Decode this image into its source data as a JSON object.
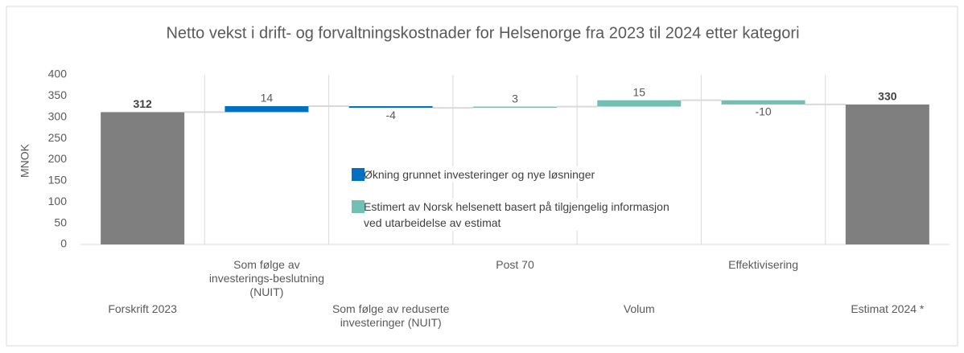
{
  "chart_data": {
    "type": "waterfall",
    "title": "Netto vekst i drift- og forvaltningskostnader for Helsenorge fra 2023 til 2024 etter kategori",
    "ylabel": "MNOK",
    "categories": [
      "Forskrift 2023",
      "Som følge av investerings-beslutning (NUIT)",
      "Som følge av reduserte investeringer (NUIT)",
      "Post 70",
      "Volum",
      "Effektivisering",
      "Estimat 2024 *"
    ],
    "values": [
      312,
      14,
      -4,
      3,
      15,
      -10,
      330
    ],
    "measure": [
      "total",
      "relative",
      "relative",
      "relative",
      "relative",
      "relative",
      "total"
    ],
    "colors": [
      "#7f7f7f",
      "#0070c0",
      "#0070c0",
      "#70c1b3",
      "#70c1b3",
      "#70c1b3",
      "#7f7f7f"
    ],
    "ylim": [
      0,
      400
    ],
    "yticks": [
      0,
      50,
      100,
      150,
      200,
      250,
      300,
      350,
      400
    ],
    "grid": false,
    "legend": [
      {
        "name": "Økning grunnet investeringer og nye løsninger",
        "color": "#0070c0"
      },
      {
        "name": "Estimert av Norsk helsenett basert på tilgjengelig informasjon ved utarbeidelse av estimat",
        "color": "#70c1b3"
      }
    ]
  }
}
